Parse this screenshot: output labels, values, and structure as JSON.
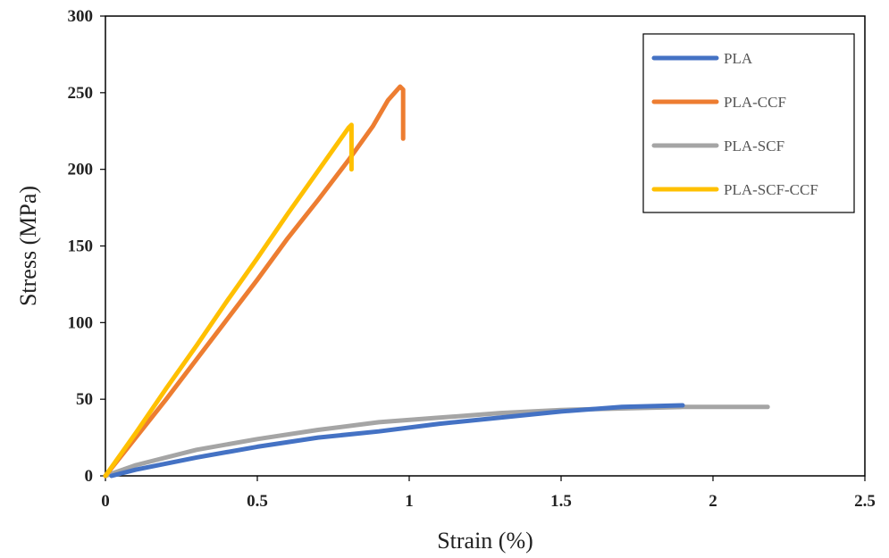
{
  "chart_data": {
    "type": "line",
    "title": "",
    "xlabel": "Strain (%)",
    "ylabel": "Stress (MPa)",
    "xlim": [
      0,
      2.5
    ],
    "ylim": [
      0,
      300
    ],
    "x_ticks": [
      "0",
      "0.5",
      "1",
      "1.5",
      "2",
      "2.5"
    ],
    "y_ticks": [
      "0",
      "50",
      "100",
      "150",
      "200",
      "250",
      "300"
    ],
    "grid": false,
    "legend_position": "top-right",
    "series": [
      {
        "name": "PLA",
        "color": "#4472C4",
        "points": [
          [
            0.02,
            0
          ],
          [
            0.1,
            4
          ],
          [
            0.3,
            12
          ],
          [
            0.5,
            19
          ],
          [
            0.7,
            25
          ],
          [
            0.9,
            29
          ],
          [
            1.1,
            34
          ],
          [
            1.3,
            38
          ],
          [
            1.5,
            42
          ],
          [
            1.7,
            45
          ],
          [
            1.9,
            46
          ]
        ]
      },
      {
        "name": "PLA-CCF",
        "color": "#ED7D31",
        "points": [
          [
            0,
            0
          ],
          [
            0.1,
            25
          ],
          [
            0.2,
            50
          ],
          [
            0.3,
            76
          ],
          [
            0.4,
            102
          ],
          [
            0.5,
            128
          ],
          [
            0.6,
            155
          ],
          [
            0.7,
            180
          ],
          [
            0.8,
            206
          ],
          [
            0.88,
            228
          ],
          [
            0.93,
            245
          ],
          [
            0.97,
            254
          ],
          [
            0.98,
            252
          ],
          [
            0.98,
            220
          ]
        ]
      },
      {
        "name": "PLA-SCF",
        "color": "#A5A5A5",
        "points": [
          [
            0,
            0
          ],
          [
            0.1,
            7
          ],
          [
            0.3,
            17
          ],
          [
            0.5,
            24
          ],
          [
            0.7,
            30
          ],
          [
            0.9,
            35
          ],
          [
            1.1,
            38
          ],
          [
            1.3,
            41
          ],
          [
            1.5,
            43
          ],
          [
            1.7,
            44
          ],
          [
            1.9,
            45
          ],
          [
            2.18,
            45
          ]
        ]
      },
      {
        "name": "PLA-SCF-CCF",
        "color": "#FFC000",
        "points": [
          [
            0,
            0
          ],
          [
            0.1,
            28
          ],
          [
            0.2,
            57
          ],
          [
            0.3,
            85
          ],
          [
            0.4,
            114
          ],
          [
            0.5,
            142
          ],
          [
            0.6,
            171
          ],
          [
            0.7,
            199
          ],
          [
            0.8,
            227
          ],
          [
            0.81,
            229
          ],
          [
            0.81,
            200
          ]
        ]
      }
    ]
  }
}
